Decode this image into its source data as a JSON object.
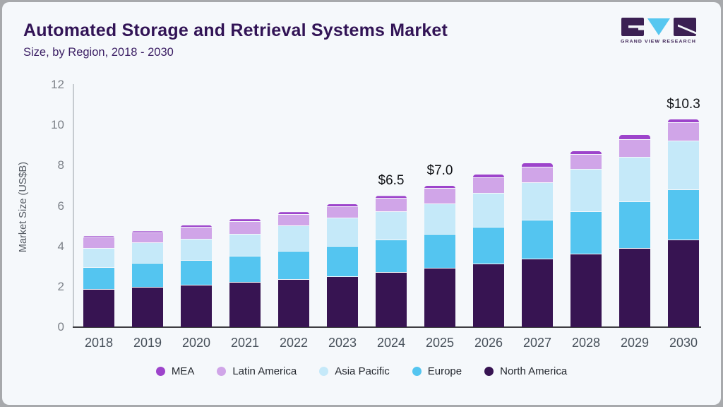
{
  "header": {
    "title": "Automated Storage and Retrieval Systems Market",
    "subtitle": "Size, by Region, 2018 - 2030"
  },
  "logo": {
    "name": "grand-view-research-logo",
    "caption": "GRAND VIEW RESEARCH",
    "mark_color": "#3b2053",
    "accent_color": "#56c7f0"
  },
  "chart_data": {
    "type": "bar",
    "stacked": true,
    "title": "Automated Storage and Retrieval Systems Market Size, by Region, 2018 - 2030",
    "xlabel": "",
    "ylabel": "Market Size (US$B)",
    "ylim": [
      0,
      12
    ],
    "yticks": [
      0,
      2,
      4,
      6,
      8,
      10,
      12
    ],
    "grid": false,
    "legend_position": "bottom",
    "legend_order": [
      "MEA",
      "Latin America",
      "Asia Pacific",
      "Europe",
      "North America"
    ],
    "categories": [
      "2018",
      "2019",
      "2020",
      "2021",
      "2022",
      "2023",
      "2024",
      "2025",
      "2026",
      "2027",
      "2028",
      "2029",
      "2030"
    ],
    "series": [
      {
        "name": "North America",
        "color": "#371452",
        "values": [
          1.85,
          1.95,
          2.05,
          2.2,
          2.35,
          2.5,
          2.7,
          2.9,
          3.1,
          3.35,
          3.6,
          3.9,
          4.3
        ]
      },
      {
        "name": "Europe",
        "color": "#54c5f0",
        "values": [
          1.1,
          1.2,
          1.25,
          1.3,
          1.4,
          1.5,
          1.6,
          1.7,
          1.85,
          1.95,
          2.1,
          2.3,
          2.5
        ]
      },
      {
        "name": "Asia Pacific",
        "color": "#c5e9f9",
        "values": [
          0.95,
          1.0,
          1.05,
          1.1,
          1.25,
          1.38,
          1.4,
          1.5,
          1.65,
          1.85,
          2.1,
          2.2,
          2.4
        ]
      },
      {
        "name": "Latin America",
        "color": "#d0a5e8",
        "values": [
          0.5,
          0.5,
          0.58,
          0.63,
          0.55,
          0.57,
          0.65,
          0.75,
          0.78,
          0.75,
          0.72,
          0.87,
          0.9
        ]
      },
      {
        "name": "MEA",
        "color": "#9d44cb",
        "values": [
          0.1,
          0.1,
          0.12,
          0.12,
          0.15,
          0.15,
          0.15,
          0.15,
          0.17,
          0.2,
          0.18,
          0.23,
          0.2
        ]
      }
    ],
    "totals": [
      4.5,
      4.75,
      5.05,
      5.35,
      5.7,
      6.1,
      6.5,
      7.0,
      7.55,
      8.1,
      8.7,
      9.5,
      10.3
    ],
    "annotations": [
      {
        "category": "2024",
        "text": "$6.5"
      },
      {
        "category": "2025",
        "text": "$7.0"
      },
      {
        "category": "2030",
        "text": "$10.3"
      }
    ]
  }
}
